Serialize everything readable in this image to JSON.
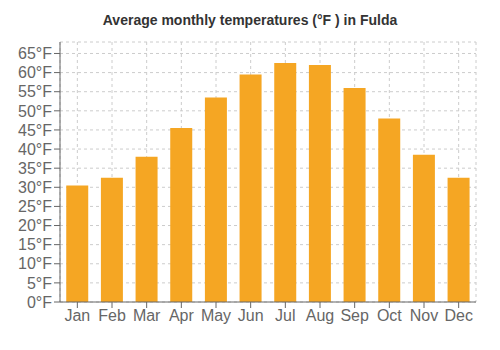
{
  "chart_data": {
    "type": "bar",
    "title": "Average monthly temperatures (°F ) in Fulda",
    "categories": [
      "Jan",
      "Feb",
      "Mar",
      "Apr",
      "May",
      "Jun",
      "Jul",
      "Aug",
      "Sep",
      "Oct",
      "Nov",
      "Dec"
    ],
    "values": [
      30.5,
      32.5,
      38.0,
      45.5,
      53.5,
      59.5,
      62.5,
      62.0,
      56.0,
      48.0,
      38.5,
      32.5
    ],
    "color": "#F5A623",
    "ylim": [
      0,
      68
    ],
    "yticks": [
      {
        "value": 0,
        "label": "0°F"
      },
      {
        "value": 5,
        "label": "5°F"
      },
      {
        "value": 10,
        "label": "10°F"
      },
      {
        "value": 15,
        "label": "15°F"
      },
      {
        "value": 20,
        "label": "20°F"
      },
      {
        "value": 25,
        "label": "25°F"
      },
      {
        "value": 30,
        "label": "30°F"
      },
      {
        "value": 35,
        "label": "35°F"
      },
      {
        "value": 40,
        "label": "40°F"
      },
      {
        "value": 45,
        "label": "45°F"
      },
      {
        "value": 50,
        "label": "50°F"
      },
      {
        "value": 55,
        "label": "55°F"
      },
      {
        "value": 60,
        "label": "60°F"
      },
      {
        "value": 65,
        "label": "65°F"
      }
    ],
    "grid": true
  }
}
